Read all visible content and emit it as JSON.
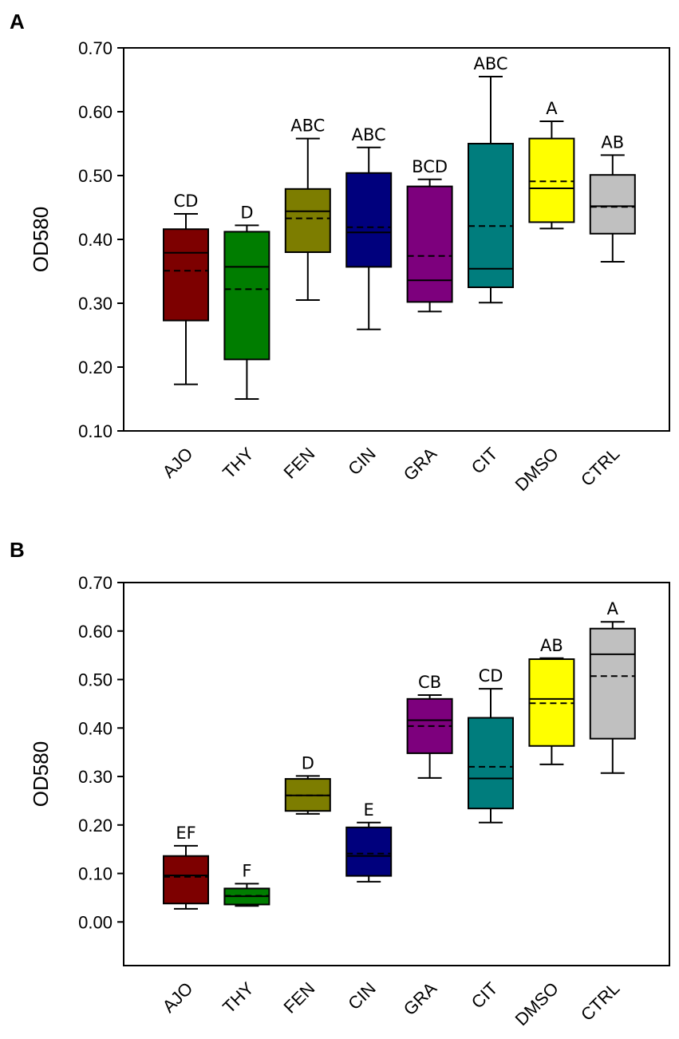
{
  "chart_data": [
    {
      "type": "box",
      "panel": "A",
      "ylabel": "OD580",
      "ylim": [
        0.1,
        0.7
      ],
      "yticks": [
        "0.10",
        "0.20",
        "0.30",
        "0.40",
        "0.50",
        "0.60",
        "0.70"
      ],
      "categories": [
        "AJO",
        "THY",
        "FEN",
        "CIN",
        "GRA",
        "CIT",
        "DMSO",
        "CTRL"
      ],
      "colors": [
        "#7d0000",
        "#007d00",
        "#7d7d00",
        "#00007d",
        "#7d007d",
        "#007d7d",
        "#ffff00",
        "#c0c0c0"
      ],
      "boxes": [
        {
          "min": 0.173,
          "q1": 0.273,
          "median": 0.379,
          "mean": 0.351,
          "q3": 0.416,
          "max": 0.44,
          "label": "CD"
        },
        {
          "min": 0.15,
          "q1": 0.212,
          "median": 0.357,
          "mean": 0.322,
          "q3": 0.412,
          "max": 0.422,
          "label": "D"
        },
        {
          "min": 0.305,
          "q1": 0.38,
          "median": 0.444,
          "mean": 0.433,
          "q3": 0.479,
          "max": 0.558,
          "label": "ABC"
        },
        {
          "min": 0.259,
          "q1": 0.357,
          "median": 0.411,
          "mean": 0.419,
          "q3": 0.504,
          "max": 0.544,
          "label": "ABC"
        },
        {
          "min": 0.287,
          "q1": 0.302,
          "median": 0.336,
          "mean": 0.374,
          "q3": 0.483,
          "max": 0.494,
          "label": "BCD"
        },
        {
          "min": 0.301,
          "q1": 0.325,
          "median": 0.354,
          "mean": 0.421,
          "q3": 0.55,
          "max": 0.655,
          "label": "ABC"
        },
        {
          "min": 0.417,
          "q1": 0.427,
          "median": 0.48,
          "mean": 0.491,
          "q3": 0.558,
          "max": 0.585,
          "label": "A"
        },
        {
          "min": 0.365,
          "q1": 0.409,
          "median": 0.452,
          "mean": 0.451,
          "q3": 0.501,
          "max": 0.532,
          "label": "AB"
        }
      ]
    },
    {
      "type": "box",
      "panel": "B",
      "ylabel": "OD580",
      "ylim": [
        -0.09,
        0.7
      ],
      "yticks": [
        "0.00",
        "0.10",
        "0.20",
        "0.30",
        "0.40",
        "0.50",
        "0.60",
        "0.70"
      ],
      "categories": [
        "AJO",
        "THY",
        "FEN",
        "CIN",
        "GRA",
        "CIT",
        "DMSO",
        "CTRL"
      ],
      "colors": [
        "#7d0000",
        "#007d00",
        "#7d7d00",
        "#00007d",
        "#7d007d",
        "#007d7d",
        "#ffff00",
        "#c0c0c0"
      ],
      "boxes": [
        {
          "min": 0.027,
          "q1": 0.038,
          "median": 0.096,
          "mean": 0.093,
          "q3": 0.136,
          "max": 0.157,
          "label": "EF"
        },
        {
          "min": 0.033,
          "q1": 0.036,
          "median": 0.053,
          "mean": 0.054,
          "q3": 0.069,
          "max": 0.079,
          "label": "F"
        },
        {
          "min": 0.223,
          "q1": 0.229,
          "median": 0.261,
          "mean": 0.261,
          "q3": 0.295,
          "max": 0.301,
          "label": "D"
        },
        {
          "min": 0.083,
          "q1": 0.095,
          "median": 0.136,
          "mean": 0.141,
          "q3": 0.195,
          "max": 0.205,
          "label": "E"
        },
        {
          "min": 0.297,
          "q1": 0.348,
          "median": 0.416,
          "mean": 0.404,
          "q3": 0.46,
          "max": 0.468,
          "label": "CB"
        },
        {
          "min": 0.205,
          "q1": 0.234,
          "median": 0.296,
          "mean": 0.32,
          "q3": 0.421,
          "max": 0.481,
          "label": "CD"
        },
        {
          "min": 0.325,
          "q1": 0.363,
          "median": 0.46,
          "mean": 0.451,
          "q3": 0.542,
          "max": 0.544,
          "label": "AB"
        },
        {
          "min": 0.307,
          "q1": 0.378,
          "median": 0.552,
          "mean": 0.507,
          "q3": 0.605,
          "max": 0.619,
          "label": "A"
        }
      ]
    }
  ]
}
